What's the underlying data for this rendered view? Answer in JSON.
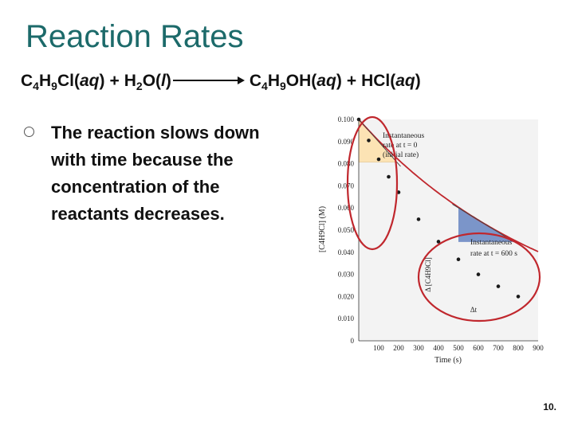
{
  "slide": {
    "title": "Reaction Rates",
    "equation": {
      "r1": [
        "C",
        "4",
        "H",
        "9",
        "Cl(",
        "aq",
        ")"
      ],
      "plus1": "+",
      "r2": [
        "H",
        "2",
        "O(",
        "l",
        ")"
      ],
      "p1": [
        "C",
        "4",
        "H",
        "9",
        "OH(",
        "aq",
        ")"
      ],
      "plus2": "+",
      "p2": [
        "HCl(",
        "aq",
        ")"
      ]
    },
    "bullet": "The reaction slows down with time because the concentration of the reactants decreases.",
    "slide_number": "10."
  },
  "chart_data": {
    "type": "line",
    "xlabel": "Time (s)",
    "ylabel": "[C4H9Cl] (M)",
    "xlim": [
      0,
      900
    ],
    "ylim": [
      0,
      0.1
    ],
    "xticks": [
      "100",
      "200",
      "300",
      "400",
      "500",
      "600",
      "700",
      "800",
      "900"
    ],
    "yticks": [
      "0",
      "0.010",
      "0.020",
      "0.030",
      "0.040",
      "0.050",
      "0.060",
      "0.070",
      "0.080",
      "0.090",
      "0.100"
    ],
    "series": [
      {
        "x": [
          0,
          50,
          100,
          150,
          200,
          300,
          400,
          500,
          600,
          700,
          800
        ],
        "y": [
          0.1,
          0.0905,
          0.082,
          0.0741,
          0.0671,
          0.0549,
          0.0448,
          0.0368,
          0.03,
          0.0246,
          0.02
        ]
      }
    ],
    "annotations": [
      {
        "text": [
          "Instantaneous",
          "rate at t = 0",
          "(initial rate)"
        ]
      },
      {
        "text": [
          "Instantaneous",
          "rate at t = 600 s"
        ]
      },
      {
        "text": "Δ [C4H9Cl]"
      },
      {
        "text": "Δt"
      }
    ],
    "colors": {
      "curve": "#c0272d",
      "highlight_circle": "#c0272d",
      "initial_triangle": "#fce3b4",
      "t600_triangle": "#7b95c9",
      "points": "#1a1a1a"
    }
  }
}
